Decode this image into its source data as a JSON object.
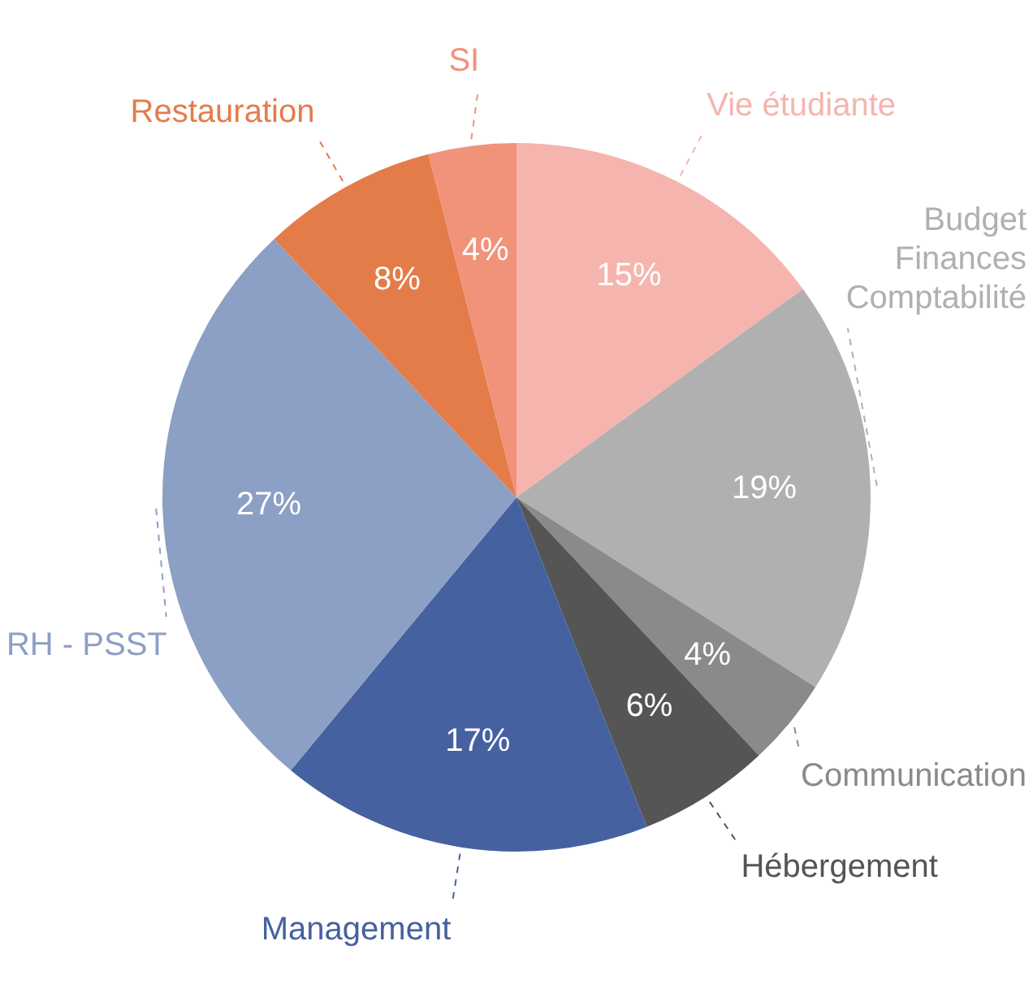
{
  "chart_data": {
    "type": "pie",
    "categories": [
      "Vie étudiante",
      "Budget\nFinances\nComptabilité",
      "Communication",
      "Hébergement",
      "Management",
      "RH - PSST",
      "Restauration",
      "SI"
    ],
    "values": [
      15,
      19,
      4,
      6,
      17,
      27,
      8,
      4
    ],
    "value_labels": [
      "15%",
      "19%",
      "4%",
      "6%",
      "17%",
      "27%",
      "8%",
      "4%"
    ],
    "colors": [
      "#f5b5ae",
      "#b0b0b0",
      "#8a8a8a",
      "#555555",
      "#4561a0",
      "#8c9fc4",
      "#e47c4a",
      "#f0937a"
    ],
    "legend": false
  }
}
